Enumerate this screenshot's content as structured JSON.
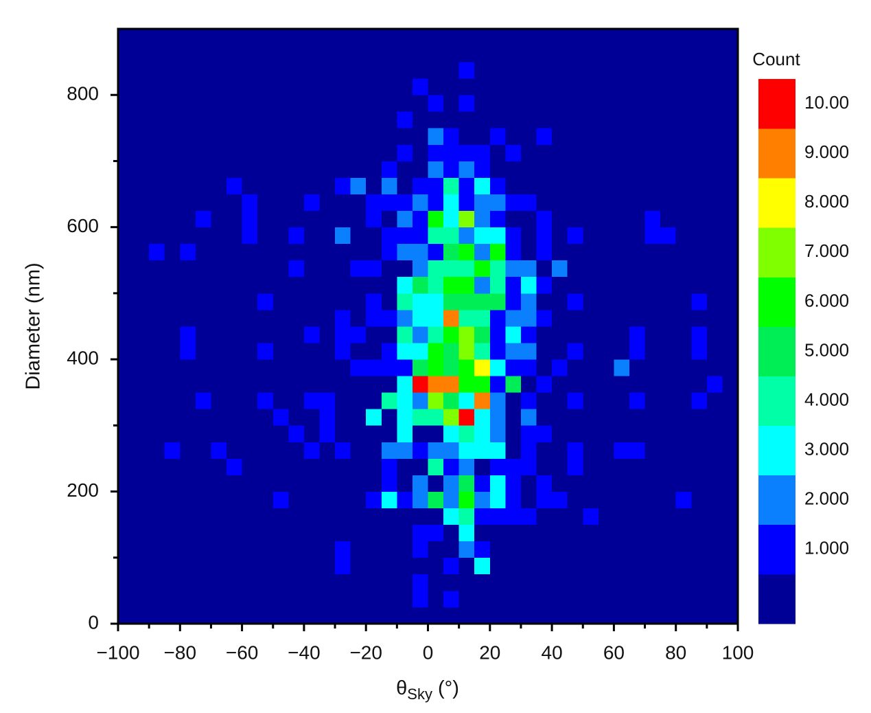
{
  "chart_data": {
    "type": "heatmap",
    "xlabel": {
      "symbol": "θ",
      "subscript": "Sky",
      "unit": "(°)"
    },
    "ylabel": "Diameter (nm)",
    "colorbar_title": "Count",
    "xlim": [
      -100,
      100
    ],
    "ylim": [
      0,
      900
    ],
    "xticks": [
      {
        "value": -100,
        "label": "−100"
      },
      {
        "value": -80,
        "label": "−80"
      },
      {
        "value": -60,
        "label": "−60"
      },
      {
        "value": -40,
        "label": "−40"
      },
      {
        "value": -20,
        "label": "−20"
      },
      0,
      20,
      40,
      60,
      80,
      100
    ],
    "xminorticks": [
      -90,
      -70,
      -50,
      -30,
      -10,
      10,
      30,
      50,
      70,
      90
    ],
    "yticks": [
      0,
      200,
      400,
      600,
      800
    ],
    "yminorticks": [
      100,
      300,
      500,
      700
    ],
    "xbins": [
      -100,
      -95,
      -90,
      -85,
      -80,
      -75,
      -70,
      -65,
      -60,
      -55,
      -50,
      -45,
      -40,
      -35,
      -30,
      -25,
      -20,
      -15,
      -10,
      -5,
      0,
      5,
      10,
      15,
      20,
      25,
      30,
      35,
      40,
      45,
      50,
      55,
      60,
      65,
      70,
      75,
      80,
      85,
      90,
      95,
      100
    ],
    "ybins": [
      0,
      25,
      50,
      75,
      100,
      125,
      150,
      175,
      200,
      225,
      250,
      275,
      300,
      325,
      350,
      375,
      400,
      425,
      450,
      475,
      500,
      525,
      550,
      575,
      600,
      625,
      650,
      675,
      700,
      725,
      750,
      775,
      800,
      825,
      850,
      875,
      900
    ],
    "colors": [
      "#000096",
      "#0000ff",
      "#0a80ff",
      "#00ffff",
      "#00ffa6",
      "#00ee55",
      "#00ff00",
      "#80ff00",
      "#ffff00",
      "#ff8000",
      "#ff0000"
    ],
    "colorbar_ticks": [
      {
        "value": 1,
        "label": "1.000"
      },
      {
        "value": 2,
        "label": "2.000"
      },
      {
        "value": 3,
        "label": "3.000"
      },
      {
        "value": 4,
        "label": "4.000"
      },
      {
        "value": 5,
        "label": "5.000"
      },
      {
        "value": 6,
        "label": "6.000"
      },
      {
        "value": 7,
        "label": "7.000"
      },
      {
        "value": 8,
        "label": "8.000"
      },
      {
        "value": 9,
        "label": "9.000"
      },
      {
        "value": 10,
        "label": "10.00"
      }
    ],
    "z": [
      [
        0,
        0,
        0,
        0,
        0,
        0,
        0,
        0,
        0,
        0,
        0,
        0,
        0,
        0,
        0,
        0,
        0,
        0,
        0,
        0,
        0,
        0,
        0,
        0,
        0,
        0,
        0,
        0,
        0,
        0,
        0,
        0,
        0,
        0,
        0,
        0,
        0,
        0,
        0,
        0
      ],
      [
        0,
        0,
        0,
        0,
        0,
        0,
        0,
        0,
        0,
        0,
        0,
        0,
        0,
        0,
        0,
        0,
        0,
        0,
        0,
        1,
        0,
        1,
        0,
        0,
        0,
        0,
        0,
        0,
        0,
        0,
        0,
        0,
        0,
        0,
        0,
        0,
        0,
        0,
        0,
        0
      ],
      [
        0,
        0,
        0,
        0,
        0,
        0,
        0,
        0,
        0,
        0,
        0,
        0,
        0,
        0,
        0,
        0,
        0,
        0,
        0,
        1,
        0,
        0,
        0,
        0,
        0,
        0,
        0,
        0,
        0,
        0,
        0,
        0,
        0,
        0,
        0,
        0,
        0,
        0,
        0,
        0
      ],
      [
        0,
        0,
        0,
        0,
        0,
        0,
        0,
        0,
        0,
        0,
        0,
        0,
        0,
        0,
        1,
        0,
        0,
        0,
        0,
        0,
        0,
        1,
        0,
        3,
        0,
        0,
        0,
        0,
        0,
        0,
        0,
        0,
        0,
        0,
        0,
        0,
        0,
        0,
        0,
        0
      ],
      [
        0,
        0,
        0,
        0,
        0,
        0,
        0,
        0,
        0,
        0,
        0,
        0,
        0,
        0,
        1,
        0,
        0,
        0,
        0,
        1,
        0,
        0,
        2,
        1,
        0,
        0,
        0,
        0,
        0,
        0,
        0,
        0,
        0,
        0,
        0,
        0,
        0,
        0,
        0,
        0
      ],
      [
        0,
        0,
        0,
        0,
        0,
        0,
        0,
        0,
        0,
        0,
        0,
        0,
        0,
        0,
        0,
        0,
        0,
        0,
        0,
        1,
        1,
        0,
        3,
        0,
        0,
        0,
        0,
        0,
        0,
        0,
        0,
        0,
        0,
        0,
        0,
        0,
        0,
        0,
        0,
        0
      ],
      [
        0,
        0,
        0,
        0,
        0,
        0,
        0,
        0,
        0,
        0,
        0,
        0,
        0,
        0,
        0,
        0,
        0,
        0,
        0,
        0,
        0,
        3,
        4,
        1,
        1,
        1,
        1,
        0,
        0,
        0,
        1,
        0,
        0,
        0,
        0,
        0,
        0,
        0,
        0,
        0
      ],
      [
        0,
        0,
        0,
        0,
        0,
        0,
        0,
        0,
        0,
        0,
        1,
        0,
        0,
        0,
        0,
        0,
        1,
        3,
        1,
        2,
        5,
        2,
        6,
        2,
        3,
        1,
        0,
        1,
        1,
        0,
        0,
        0,
        0,
        0,
        0,
        0,
        1,
        0,
        0,
        0
      ],
      [
        0,
        0,
        0,
        0,
        0,
        0,
        0,
        0,
        0,
        0,
        0,
        0,
        0,
        0,
        0,
        0,
        0,
        1,
        0,
        2,
        0,
        2,
        5,
        1,
        3,
        1,
        0,
        1,
        0,
        0,
        0,
        0,
        0,
        0,
        0,
        0,
        0,
        0,
        0,
        0
      ],
      [
        0,
        0,
        0,
        0,
        0,
        0,
        0,
        1,
        0,
        0,
        0,
        0,
        0,
        0,
        0,
        0,
        0,
        1,
        0,
        0,
        4,
        1,
        2,
        0,
        1,
        1,
        1,
        0,
        0,
        1,
        0,
        0,
        0,
        0,
        0,
        0,
        0,
        0,
        0,
        0
      ],
      [
        0,
        0,
        0,
        1,
        0,
        0,
        1,
        0,
        0,
        0,
        0,
        0,
        1,
        0,
        1,
        0,
        0,
        2,
        2,
        1,
        2,
        2,
        3,
        3,
        3,
        0,
        1,
        0,
        0,
        1,
        0,
        0,
        1,
        1,
        0,
        0,
        0,
        0,
        0,
        0
      ],
      [
        0,
        0,
        0,
        0,
        0,
        0,
        0,
        0,
        0,
        0,
        0,
        1,
        0,
        1,
        0,
        0,
        0,
        0,
        3,
        0,
        0,
        3,
        4,
        3,
        2,
        0,
        1,
        1,
        0,
        0,
        0,
        0,
        0,
        0,
        0,
        0,
        0,
        0,
        0,
        0
      ],
      [
        0,
        0,
        0,
        0,
        0,
        0,
        0,
        0,
        0,
        0,
        1,
        0,
        0,
        1,
        0,
        0,
        3,
        0,
        3,
        4,
        4,
        7,
        10,
        3,
        2,
        0,
        2,
        0,
        0,
        0,
        0,
        0,
        0,
        0,
        0,
        0,
        0,
        0,
        0,
        0
      ],
      [
        0,
        0,
        0,
        0,
        0,
        1,
        0,
        0,
        0,
        1,
        0,
        0,
        1,
        1,
        0,
        0,
        0,
        4,
        3,
        2,
        7,
        5,
        3,
        9,
        2,
        0,
        1,
        0,
        0,
        1,
        0,
        0,
        0,
        1,
        0,
        0,
        0,
        1,
        0,
        0
      ],
      [
        0,
        0,
        0,
        0,
        0,
        0,
        0,
        0,
        0,
        0,
        0,
        0,
        0,
        0,
        0,
        0,
        0,
        0,
        3,
        10,
        9,
        9,
        6,
        6,
        1,
        5,
        0,
        1,
        0,
        0,
        0,
        0,
        0,
        0,
        0,
        0,
        0,
        0,
        1,
        0
      ],
      [
        0,
        0,
        0,
        0,
        0,
        0,
        0,
        0,
        0,
        0,
        0,
        0,
        0,
        0,
        0,
        1,
        1,
        1,
        1,
        5,
        6,
        5,
        6,
        8,
        3,
        1,
        1,
        0,
        1,
        0,
        0,
        0,
        2,
        0,
        0,
        0,
        0,
        0,
        0,
        0
      ],
      [
        0,
        0,
        0,
        0,
        1,
        0,
        0,
        0,
        0,
        1,
        0,
        0,
        0,
        0,
        1,
        0,
        0,
        1,
        3,
        3,
        6,
        5,
        7,
        4,
        1,
        2,
        2,
        0,
        0,
        1,
        0,
        0,
        0,
        1,
        0,
        0,
        0,
        1,
        0,
        0
      ],
      [
        0,
        0,
        0,
        0,
        1,
        0,
        0,
        0,
        0,
        0,
        0,
        0,
        1,
        0,
        1,
        1,
        0,
        0,
        4,
        2,
        4,
        6,
        7,
        5,
        1,
        3,
        1,
        0,
        0,
        0,
        0,
        0,
        0,
        1,
        0,
        0,
        0,
        1,
        0,
        0
      ],
      [
        0,
        0,
        0,
        0,
        0,
        0,
        0,
        0,
        0,
        0,
        0,
        0,
        0,
        0,
        1,
        0,
        1,
        1,
        2,
        3,
        3,
        9,
        4,
        4,
        1,
        2,
        2,
        1,
        0,
        0,
        0,
        0,
        0,
        0,
        0,
        0,
        0,
        0,
        0,
        0
      ],
      [
        0,
        0,
        0,
        0,
        0,
        0,
        0,
        0,
        0,
        1,
        0,
        0,
        0,
        0,
        0,
        0,
        1,
        0,
        4,
        3,
        3,
        5,
        5,
        5,
        5,
        1,
        2,
        0,
        0,
        1,
        0,
        0,
        0,
        0,
        0,
        0,
        0,
        1,
        0,
        0
      ],
      [
        0,
        0,
        0,
        0,
        0,
        0,
        0,
        0,
        0,
        0,
        0,
        0,
        0,
        0,
        0,
        0,
        0,
        0,
        3,
        5,
        4,
        6,
        6,
        2,
        4,
        1,
        3,
        1,
        0,
        0,
        0,
        0,
        0,
        0,
        0,
        0,
        0,
        0,
        0,
        0
      ],
      [
        0,
        0,
        0,
        0,
        0,
        0,
        0,
        0,
        0,
        0,
        0,
        1,
        0,
        0,
        0,
        1,
        1,
        0,
        0,
        2,
        4,
        4,
        4,
        6,
        4,
        2,
        2,
        0,
        2,
        0,
        0,
        0,
        0,
        0,
        0,
        0,
        0,
        0,
        0,
        0
      ],
      [
        0,
        0,
        1,
        0,
        1,
        0,
        0,
        0,
        0,
        0,
        0,
        0,
        0,
        0,
        0,
        0,
        0,
        1,
        2,
        2,
        1,
        5,
        6,
        2,
        6,
        1,
        0,
        1,
        0,
        0,
        0,
        0,
        0,
        0,
        0,
        0,
        0,
        0,
        0,
        0
      ],
      [
        0,
        0,
        0,
        0,
        0,
        0,
        0,
        0,
        1,
        0,
        0,
        1,
        0,
        0,
        2,
        0,
        0,
        1,
        1,
        1,
        4,
        4,
        2,
        3,
        3,
        1,
        0,
        1,
        0,
        1,
        0,
        0,
        0,
        0,
        1,
        1,
        0,
        0,
        0,
        0
      ],
      [
        0,
        0,
        0,
        0,
        0,
        1,
        0,
        0,
        1,
        0,
        0,
        0,
        0,
        0,
        0,
        0,
        1,
        0,
        2,
        1,
        6,
        3,
        7,
        2,
        1,
        0,
        0,
        1,
        0,
        0,
        0,
        0,
        0,
        0,
        1,
        0,
        0,
        0,
        0,
        0
      ],
      [
        0,
        0,
        0,
        0,
        0,
        0,
        0,
        0,
        1,
        0,
        0,
        0,
        1,
        0,
        0,
        0,
        1,
        1,
        1,
        2,
        1,
        3,
        1,
        2,
        2,
        1,
        1,
        0,
        0,
        0,
        0,
        0,
        0,
        0,
        0,
        0,
        0,
        0,
        0,
        0
      ],
      [
        0,
        0,
        0,
        0,
        0,
        0,
        0,
        1,
        0,
        0,
        0,
        0,
        0,
        0,
        1,
        2,
        0,
        2,
        0,
        1,
        1,
        4,
        1,
        3,
        1,
        0,
        0,
        0,
        0,
        0,
        0,
        0,
        0,
        0,
        0,
        0,
        0,
        0,
        0,
        0
      ],
      [
        0,
        0,
        0,
        0,
        0,
        0,
        0,
        0,
        0,
        0,
        0,
        0,
        0,
        0,
        0,
        0,
        0,
        1,
        0,
        0,
        2,
        1,
        2,
        1,
        0,
        0,
        0,
        0,
        0,
        0,
        0,
        0,
        0,
        0,
        0,
        0,
        0,
        0,
        0,
        0
      ],
      [
        0,
        0,
        0,
        0,
        0,
        0,
        0,
        0,
        0,
        0,
        0,
        0,
        0,
        0,
        0,
        0,
        0,
        0,
        1,
        0,
        1,
        1,
        1,
        1,
        0,
        1,
        0,
        0,
        0,
        0,
        0,
        0,
        0,
        0,
        0,
        0,
        0,
        0,
        0,
        0
      ],
      [
        0,
        0,
        0,
        0,
        0,
        0,
        0,
        0,
        0,
        0,
        0,
        0,
        0,
        0,
        0,
        0,
        0,
        0,
        0,
        0,
        2,
        1,
        0,
        0,
        1,
        0,
        0,
        1,
        0,
        0,
        0,
        0,
        0,
        0,
        0,
        0,
        0,
        0,
        0,
        0
      ],
      [
        0,
        0,
        0,
        0,
        0,
        0,
        0,
        0,
        0,
        0,
        0,
        0,
        0,
        0,
        0,
        0,
        0,
        0,
        1,
        0,
        0,
        0,
        0,
        0,
        0,
        0,
        0,
        0,
        0,
        0,
        0,
        0,
        0,
        0,
        0,
        0,
        0,
        0,
        0,
        0
      ],
      [
        0,
        0,
        0,
        0,
        0,
        0,
        0,
        0,
        0,
        0,
        0,
        0,
        0,
        0,
        0,
        0,
        0,
        0,
        0,
        0,
        1,
        0,
        1,
        0,
        0,
        0,
        0,
        0,
        0,
        0,
        0,
        0,
        0,
        0,
        0,
        0,
        0,
        0,
        0,
        0
      ],
      [
        0,
        0,
        0,
        0,
        0,
        0,
        0,
        0,
        0,
        0,
        0,
        0,
        0,
        0,
        0,
        0,
        0,
        0,
        0,
        1,
        0,
        0,
        0,
        0,
        0,
        0,
        0,
        0,
        0,
        0,
        0,
        0,
        0,
        0,
        0,
        0,
        0,
        0,
        0,
        0
      ],
      [
        0,
        0,
        0,
        0,
        0,
        0,
        0,
        0,
        0,
        0,
        0,
        0,
        0,
        0,
        0,
        0,
        0,
        0,
        0,
        0,
        0,
        0,
        1,
        0,
        0,
        0,
        0,
        0,
        0,
        0,
        0,
        0,
        0,
        0,
        0,
        0,
        0,
        0,
        0,
        0
      ],
      [
        0,
        0,
        0,
        0,
        0,
        0,
        0,
        0,
        0,
        0,
        0,
        0,
        0,
        0,
        0,
        0,
        0,
        0,
        0,
        0,
        0,
        0,
        0,
        0,
        0,
        0,
        0,
        0,
        0,
        0,
        0,
        0,
        0,
        0,
        0,
        0,
        0,
        0,
        0,
        0
      ],
      [
        0,
        0,
        0,
        0,
        0,
        0,
        0,
        0,
        0,
        0,
        0,
        0,
        0,
        0,
        0,
        0,
        0,
        0,
        0,
        0,
        0,
        0,
        0,
        0,
        0,
        0,
        0,
        0,
        0,
        0,
        0,
        0,
        0,
        0,
        0,
        0,
        0,
        0,
        0,
        0
      ]
    ]
  }
}
